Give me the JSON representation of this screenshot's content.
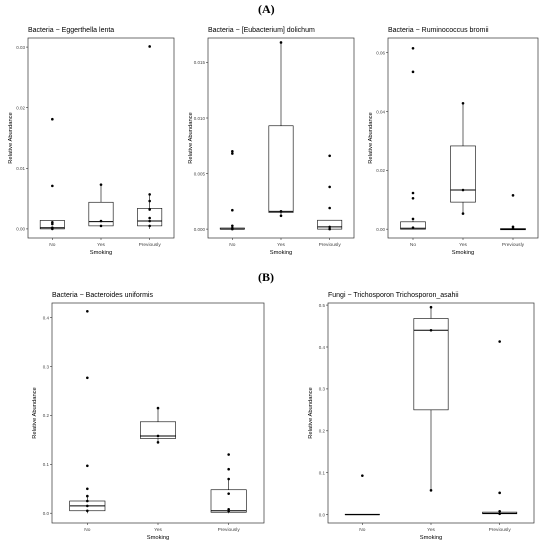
{
  "panel_labels": {
    "A": "(A)",
    "B": "(B)"
  },
  "chart_data": [
    {
      "type": "box",
      "title": "Bacteria − Eggerthella lenta",
      "xlabel": "Smoking",
      "ylabel": "Relative Abundance",
      "categories": [
        "No",
        "Yes",
        "Previously"
      ],
      "yticks": [
        0.0,
        0.01,
        0.02,
        0.03
      ],
      "ytick_labels": [
        "0.00",
        "0.01",
        "0.02",
        "0.03"
      ],
      "ylim": [
        -0.0015,
        0.0315
      ],
      "boxes": [
        {
          "q1": 0.0,
          "median": 0.0002,
          "q3": 0.0014,
          "wlo": 0.0,
          "whi": 0.0014,
          "points": [
            0.0181,
            0.0071,
            0.0011,
            0.0008,
            0.0002,
            0.0
          ]
        },
        {
          "q1": 0.0005,
          "median": 0.0012,
          "q3": 0.0044,
          "wlo": 0.0003,
          "whi": 0.0073,
          "points": [
            0.0073,
            0.0013,
            0.0005
          ]
        },
        {
          "q1": 0.0005,
          "median": 0.0013,
          "q3": 0.0034,
          "wlo": 0.0,
          "whi": 0.0057,
          "points": [
            0.0301,
            0.0057,
            0.0046,
            0.0032,
            0.0018,
            0.0013,
            0.0005
          ]
        }
      ]
    },
    {
      "type": "box",
      "title": "Bacteria − [Eubacterium] dolichum",
      "xlabel": "Smoking",
      "ylabel": "Relative Abundance",
      "categories": [
        "No",
        "Yes",
        "Previously"
      ],
      "yticks": [
        0.0,
        0.005,
        0.01,
        0.015
      ],
      "ytick_labels": [
        "0.000",
        "0.005",
        "0.010",
        "0.015"
      ],
      "ylim": [
        -0.0008,
        0.0172
      ],
      "boxes": [
        {
          "q1": 0.0,
          "median": 0.0,
          "q3": 0.0001,
          "wlo": 0.0,
          "whi": 0.0001,
          "points": [
            0.007,
            0.0068,
            0.0017,
            0.0003,
            0.0001,
            0.0
          ]
        },
        {
          "q1": 0.0015,
          "median": 0.0016,
          "q3": 0.0093,
          "wlo": 0.0012,
          "whi": 0.0168,
          "points": [
            0.0168,
            0.0016,
            0.0012
          ]
        },
        {
          "q1": 0.0,
          "median": 0.0002,
          "q3": 0.0008,
          "wlo": 0.0,
          "whi": 0.0008,
          "points": [
            0.0066,
            0.0038,
            0.0019,
            0.0002,
            0.0
          ]
        }
      ]
    },
    {
      "type": "box",
      "title": "Bacteria − Ruminococcus bromii",
      "xlabel": "Smoking",
      "ylabel": "Relative Abundance",
      "categories": [
        "No",
        "Yes",
        "Previously"
      ],
      "yticks": [
        0.0,
        0.02,
        0.04,
        0.06
      ],
      "ytick_labels": [
        "0.00",
        "0.02",
        "0.04",
        "0.06"
      ],
      "ylim": [
        -0.003,
        0.065
      ],
      "boxes": [
        {
          "q1": 0.0,
          "median": 0.0003,
          "q3": 0.0025,
          "wlo": 0.0,
          "whi": 0.003,
          "points": [
            0.0615,
            0.0535,
            0.0123,
            0.0105,
            0.0035,
            0.0005
          ]
        },
        {
          "q1": 0.0092,
          "median": 0.0133,
          "q3": 0.0283,
          "wlo": 0.0053,
          "whi": 0.0428,
          "points": [
            0.0428,
            0.0133,
            0.0053
          ]
        },
        {
          "q1": -0.0002,
          "median": 0.0,
          "q3": 0.0002,
          "wlo": 0.0,
          "whi": 0.0002,
          "points": [
            0.0115,
            0.0008,
            0.0002
          ]
        }
      ]
    },
    {
      "type": "box",
      "title": "Bacteria − Bacteroides uniformis",
      "xlabel": "Smoking",
      "ylabel": "Relative Abundance",
      "categories": [
        "No",
        "Yes",
        "Previously"
      ],
      "yticks": [
        0.0,
        0.1,
        0.2,
        0.3,
        0.4
      ],
      "ytick_labels": [
        "0.0",
        "0.1",
        "0.2",
        "0.3",
        "0.4"
      ],
      "ylim": [
        -0.02,
        0.43
      ],
      "boxes": [
        {
          "q1": 0.005,
          "median": 0.015,
          "q3": 0.025,
          "wlo": 0.0,
          "whi": 0.035,
          "points": [
            0.413,
            0.277,
            0.097,
            0.05,
            0.035,
            0.025,
            0.015,
            0.005
          ]
        },
        {
          "q1": 0.153,
          "median": 0.158,
          "q3": 0.187,
          "wlo": 0.145,
          "whi": 0.215,
          "points": [
            0.215,
            0.158,
            0.145
          ]
        },
        {
          "q1": 0.002,
          "median": 0.005,
          "q3": 0.048,
          "wlo": 0.0,
          "whi": 0.07,
          "points": [
            0.12,
            0.09,
            0.07,
            0.04,
            0.008,
            0.004
          ]
        }
      ]
    },
    {
      "type": "box",
      "title": "Fungi − Trichosporon Trichosporon_asahii",
      "xlabel": "Smoking",
      "ylabel": "Relative Abundance",
      "categories": [
        "No",
        "Yes",
        "Previously"
      ],
      "yticks": [
        0.0,
        0.1,
        0.2,
        0.3,
        0.4,
        0.5
      ],
      "ytick_labels": [
        "0.0",
        "0.1",
        "0.2",
        "0.3",
        "0.4",
        "0.5"
      ],
      "ylim": [
        -0.02,
        0.505
      ],
      "boxes": [
        {
          "q1": 0.0,
          "median": 0.0,
          "q3": 0.001,
          "wlo": 0.0,
          "whi": 0.001,
          "points": [
            0.093
          ]
        },
        {
          "q1": 0.25,
          "median": 0.44,
          "q3": 0.468,
          "wlo": 0.058,
          "whi": 0.495,
          "points": [
            0.495,
            0.44,
            0.058
          ]
        },
        {
          "q1": 0.002,
          "median": 0.003,
          "q3": 0.006,
          "wlo": 0.0,
          "whi": 0.006,
          "points": [
            0.413,
            0.052,
            0.008,
            0.002
          ]
        }
      ]
    }
  ]
}
